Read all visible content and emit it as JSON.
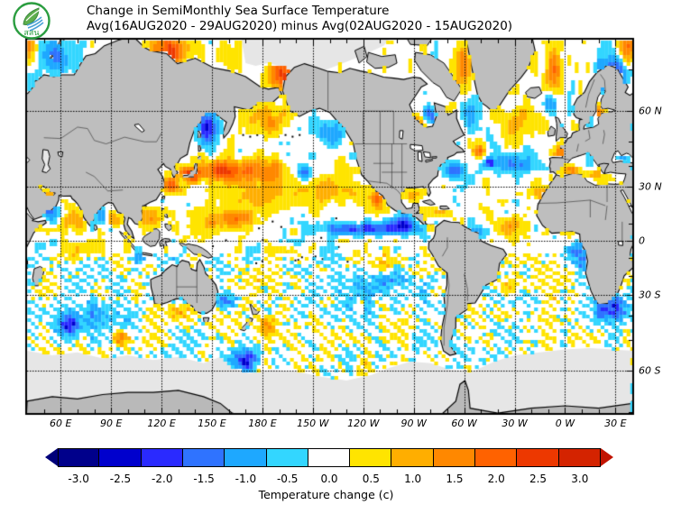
{
  "header": {
    "logo_text": "สสน",
    "title_line1": "Change in SemiMonthly Sea Surface Temperature",
    "title_line2": "Avg(16AUG2020 - 29AUG2020) minus Avg(02AUG2020 - 15AUG2020)"
  },
  "map": {
    "lat_ticks": [
      {
        "label": "60 N",
        "lat": 60
      },
      {
        "label": "30 N",
        "lat": 30
      },
      {
        "label": "0",
        "lat": 0
      },
      {
        "label": "30 S",
        "lat": -30
      },
      {
        "label": "60 S",
        "lat": -60
      }
    ],
    "lon_ticks": [
      {
        "label": "60 E",
        "lon": 60
      },
      {
        "label": "90 E",
        "lon": 90
      },
      {
        "label": "120 E",
        "lon": 120
      },
      {
        "label": "150 E",
        "lon": 150
      },
      {
        "label": "180 E",
        "lon": 180
      },
      {
        "label": "150 W",
        "lon": 210
      },
      {
        "label": "120 W",
        "lon": 240
      },
      {
        "label": "90 W",
        "lon": 270
      },
      {
        "label": "60 W",
        "lon": 300
      },
      {
        "label": "30 W",
        "lon": 330
      },
      {
        "label": "0 W",
        "lon": 360
      },
      {
        "label": "30 E",
        "lon": 390
      }
    ]
  },
  "colorbar": {
    "levels": [
      "-3.0",
      "-2.5",
      "-2.0",
      "-1.5",
      "-1.0",
      "-0.5",
      "0.0",
      "0.5",
      "1.0",
      "1.5",
      "2.0",
      "2.5",
      "3.0"
    ],
    "colors": [
      "#00008b",
      "#0000cd",
      "#2a2aff",
      "#2f73ff",
      "#1ea8ff",
      "#33d6ff",
      "#ffffff",
      "#ffe400",
      "#ffae00",
      "#ff8800",
      "#ff6200",
      "#ed3800",
      "#d42300"
    ],
    "arrow_left_color": "#00007a",
    "arrow_right_color": "#c11300",
    "caption": "Temperature change  (c)"
  },
  "chart_data": {
    "type": "heatmap",
    "title": "Change in SemiMonthly Sea Surface Temperature",
    "subtitle": "Avg(16AUG2020 - 29AUG2020) minus Avg(02AUG2020 - 15AUG2020)",
    "units": "C",
    "projection": "mercator",
    "lon_range": [
      40,
      400
    ],
    "lat_range": [
      -70.3,
      75.2
    ],
    "grid_step_deg": 30,
    "levels": [
      -3.0,
      -2.5,
      -2.0,
      -1.5,
      -1.0,
      -0.5,
      0.0,
      0.5,
      1.0,
      1.5,
      2.0,
      2.5,
      3.0
    ],
    "palette": [
      "#00008b",
      "#0000cd",
      "#2a2aff",
      "#2f73ff",
      "#1ea8ff",
      "#33d6ff",
      "#ffffff",
      "#ffe400",
      "#ffae00",
      "#ff8800",
      "#ff6200",
      "#ed3800",
      "#d42300"
    ],
    "ocean_color": "#ffffff",
    "land_color": "#bebebe",
    "ice_color": "#e6e6e6",
    "white_band": 0.25,
    "noise_amplitude": 0.62,
    "anomaly_regions": [
      {
        "name": "East China / Yellow Sea",
        "lon": 124,
        "lat": 31,
        "lon_r": 5,
        "lat_r": 4,
        "value": 2.6
      },
      {
        "name": "Kuroshio off Japan",
        "lon": 136,
        "lat": 36,
        "lon_r": 6,
        "lat_r": 3.5,
        "value": 2.7
      },
      {
        "name": "Kuroshio Extension",
        "lon": 155,
        "lat": 38,
        "lon_r": 12,
        "lat_r": 4.5,
        "value": 2.4
      },
      {
        "name": "Central North Pacific warm core",
        "lon": 178,
        "lat": 38,
        "lon_r": 14,
        "lat_r": 5,
        "value": 1.6
      },
      {
        "name": "Subtropical North Pacific",
        "lon": 185,
        "lat": 27,
        "lon_r": 35,
        "lat_r": 9,
        "value": 0.85
      },
      {
        "name": "Northeast Pacific subtropics",
        "lon": 222,
        "lat": 30,
        "lon_r": 18,
        "lat_r": 8,
        "value": 0.7
      },
      {
        "name": "Bering Sea",
        "lon": 185,
        "lat": 57,
        "lon_r": 13,
        "lat_r": 4.5,
        "value": 0.95
      },
      {
        "name": "Chukchi Sea",
        "lon": 192,
        "lat": 69,
        "lon_r": 11,
        "lat_r": 3.2,
        "value": 2.5
      },
      {
        "name": "Laptev Sea",
        "lon": 125,
        "lat": 73.5,
        "lon_r": 12,
        "lat_r": 2.8,
        "value": 2.3
      },
      {
        "name": "West Pacific warm pool",
        "lon": 152,
        "lat": 10,
        "lon_r": 18,
        "lat_r": 8,
        "value": 0.9
      },
      {
        "name": "Micronesia warm patch",
        "lon": 163,
        "lat": 13,
        "lon_r": 9,
        "lat_r": 4,
        "value": 1.3
      },
      {
        "name": "South China Sea",
        "lon": 112,
        "lat": 12,
        "lon_r": 6,
        "lat_r": 6,
        "value": 1.0
      },
      {
        "name": "East Bay of Bengal",
        "lon": 92,
        "lat": 12,
        "lon_r": 4,
        "lat_r": 4,
        "value": 1.6
      },
      {
        "name": "Central Arabian Sea",
        "lon": 66,
        "lat": 11,
        "lon_r": 7,
        "lat_r": 5,
        "value": 1.1
      },
      {
        "name": "Persian Gulf / Red Sea",
        "lon": 52,
        "lat": 26,
        "lon_r": 5,
        "lat_r": 3,
        "value": 1.2
      },
      {
        "name": "Hudson Bay south",
        "lon": 272,
        "lat": 55,
        "lon_r": 5,
        "lat_r": 3,
        "value": 2.0
      },
      {
        "name": "Baffin Bay coast",
        "lon": 299,
        "lat": 71,
        "lon_r": 5,
        "lat_r": 4,
        "value": 1.6
      },
      {
        "name": "Newfoundland warm spot",
        "lon": 308,
        "lat": 46,
        "lon_r": 4,
        "lat_r": 2.5,
        "value": 1.9
      },
      {
        "name": "Irminger / south of Iceland",
        "lon": 330,
        "lat": 56,
        "lon_r": 10,
        "lat_r": 5,
        "value": 1.2
      },
      {
        "name": "East Greenland Sea",
        "lon": 352,
        "lat": 70,
        "lon_r": 6,
        "lat_r": 4.5,
        "value": 1.5
      },
      {
        "name": "Barents opening",
        "lon": 396,
        "lat": 74,
        "lon_r": 7,
        "lat_r": 3,
        "value": 2.0
      },
      {
        "name": "Baltic Sea",
        "lon": 380,
        "lat": 58,
        "lon_r": 2.5,
        "lat_r": 4,
        "value": 1.8
      },
      {
        "name": "Biscay / West Europe",
        "lon": 356,
        "lat": 45,
        "lon_r": 4,
        "lat_r": 3.5,
        "value": 1.4
      },
      {
        "name": "Western Mediterranean",
        "lon": 364,
        "lat": 38,
        "lon_r": 5,
        "lat_r": 2,
        "value": 1.5
      },
      {
        "name": "Central Mediterranean",
        "lon": 377,
        "lat": 36,
        "lon_r": 6,
        "lat_r": 2.2,
        "value": 1.1
      },
      {
        "name": "Canary / Morocco",
        "lon": 347,
        "lat": 26,
        "lon_r": 6,
        "lat_r": 5,
        "value": 1.2
      },
      {
        "name": "Tropical North Atlantic east",
        "lon": 325,
        "lat": 9,
        "lon_r": 9,
        "lat_r": 5,
        "value": 1.2
      },
      {
        "name": "Caribbean",
        "lon": 284,
        "lat": 16,
        "lon_r": 9,
        "lat_r": 4,
        "value": 0.7
      },
      {
        "name": "Gulf of Mexico",
        "lon": 268,
        "lat": 26,
        "lon_r": 6,
        "lat_r": 3,
        "value": 0.6
      },
      {
        "name": "Baja California coast",
        "lon": 247,
        "lat": 23,
        "lon_r": 3,
        "lat_r": 5,
        "value": 1.7
      },
      {
        "name": "Panama Bight coast",
        "lon": 280,
        "lat": 7,
        "lon_r": 4,
        "lat_r": 2,
        "value": 1.4
      },
      {
        "name": "Peru offshore streaks",
        "lon": 252,
        "lat": -12,
        "lon_r": 10,
        "lat_r": 5,
        "value": 0.9
      },
      {
        "name": "East of New Zealand",
        "lon": 181,
        "lat": -44,
        "lon_r": 6,
        "lat_r": 4,
        "value": 1.4
      },
      {
        "name": "Great Australian Bight",
        "lon": 127,
        "lat": -38,
        "lon_r": 9,
        "lat_r": 4,
        "value": 0.8
      },
      {
        "name": "South Indian warm spot",
        "lon": 95,
        "lat": -49,
        "lon_r": 5,
        "lat_r": 3,
        "value": 1.6
      },
      {
        "name": "Equatorial Indian Ocean",
        "lon": 75,
        "lat": -5,
        "lon_r": 14,
        "lat_r": 6,
        "value": 0.55
      },
      {
        "name": "Brazil offshore",
        "lon": 322,
        "lat": -24,
        "lon_r": 6,
        "lat_r": 5,
        "value": 0.6
      },
      {
        "name": "Sea of Okhotsk",
        "lon": 146,
        "lat": 55,
        "lon_r": 6,
        "lat_r": 4.5,
        "value": -2.5
      },
      {
        "name": "Mid-Pacific cool patch",
        "lon": 204,
        "lat": 37,
        "lon_r": 5,
        "lat_r": 3.5,
        "value": -1.6
      },
      {
        "name": "Gulf of Alaska coastal",
        "lon": 220,
        "lat": 52,
        "lon_r": 7,
        "lat_r": 5,
        "value": -1.5
      },
      {
        "name": "Eastern tropical Pacific cool band",
        "lon": 252,
        "lat": 7,
        "lon_r": 22,
        "lat_r": 3.5,
        "value": -2.0
      },
      {
        "name": "Central equatorial Pacific",
        "lon": 225,
        "lat": 7,
        "lon_r": 14,
        "lat_r": 3.5,
        "value": -1.1
      },
      {
        "name": "Southwest of Mexico",
        "lon": 262,
        "lat": 11,
        "lon_r": 6,
        "lat_r": 4,
        "value": -1.3
      },
      {
        "name": "Southeast Pacific",
        "lon": 248,
        "lat": -25,
        "lon_r": 28,
        "lat_r": 12,
        "value": -0.65
      },
      {
        "name": "South of New Zealand",
        "lon": 168,
        "lat": -57,
        "lon_r": 7,
        "lat_r": 3.5,
        "value": -2.3
      },
      {
        "name": "North of New Zealand",
        "lon": 158,
        "lat": -33,
        "lon_r": 6,
        "lat_r": 4,
        "value": -1.5
      },
      {
        "name": "South Indian cool pool",
        "lon": 64,
        "lat": -44,
        "lon_r": 6,
        "lat_r": 4,
        "value": -2.1
      },
      {
        "name": "South Indian broad cool",
        "lon": 82,
        "lat": -40,
        "lon_r": 18,
        "lat_r": 7,
        "value": -0.8
      },
      {
        "name": "South of Africa / Agulhas",
        "lon": 386,
        "lat": -37,
        "lon_r": 9,
        "lat_r": 6,
        "value": -2.2
      },
      {
        "name": "Benguela / Gulf of Guinea",
        "lon": 369,
        "lat": -8,
        "lon_r": 8,
        "lat_r": 8,
        "value": -1.5
      },
      {
        "name": "Subtropical mid-Atlantic cool band",
        "lon": 331,
        "lat": 40,
        "lon_r": 12,
        "lat_r": 4,
        "value": -1.4
      },
      {
        "name": "Off US East Coast",
        "lon": 293,
        "lat": 38,
        "lon_r": 7,
        "lat_r": 3.5,
        "value": -1.7
      },
      {
        "name": "Northwest Atlantic spot",
        "lon": 314,
        "lat": 41,
        "lon_r": 3,
        "lat_r": 2,
        "value": -2.1
      },
      {
        "name": "West tropical Atlantic",
        "lon": 308,
        "lat": 6,
        "lon_r": 7,
        "lat_r": 4,
        "value": -0.7
      },
      {
        "name": "Norwegian / Barents Sea",
        "lon": 388,
        "lat": 69,
        "lon_r": 9,
        "lat_r": 4.5,
        "value": -2.3
      },
      {
        "name": "Southeast of Iceland",
        "lon": 350,
        "lat": 62,
        "lon_r": 4,
        "lat_r": 2.5,
        "value": -1.5
      },
      {
        "name": "Hudson Bay east",
        "lon": 279,
        "lat": 59,
        "lon_r": 3.5,
        "lat_r": 2.5,
        "value": -1.9
      },
      {
        "name": "Labrador Sea",
        "lon": 302,
        "lat": 60,
        "lon_r": 5,
        "lat_r": 4,
        "value": -1.0
      },
      {
        "name": "Black Sea",
        "lon": 393,
        "lat": 43,
        "lon_r": 4,
        "lat_r": 1.5,
        "value": -1.4
      },
      {
        "name": "Somali coast upwelling",
        "lon": 53,
        "lat": 17,
        "lon_r": 5,
        "lat_r": 5,
        "value": -1.5
      },
      {
        "name": "West Bay of Bengal",
        "lon": 83,
        "lat": 15,
        "lon_r": 3,
        "lat_r": 4,
        "value": -1.3
      },
      {
        "name": "South of Java",
        "lon": 107,
        "lat": -10,
        "lon_r": 7,
        "lat_r": 3,
        "value": -0.9
      },
      {
        "name": "Kara Sea",
        "lon": 55,
        "lat": 73,
        "lon_r": 8,
        "lat_r": 3,
        "value": -1.2
      }
    ]
  }
}
